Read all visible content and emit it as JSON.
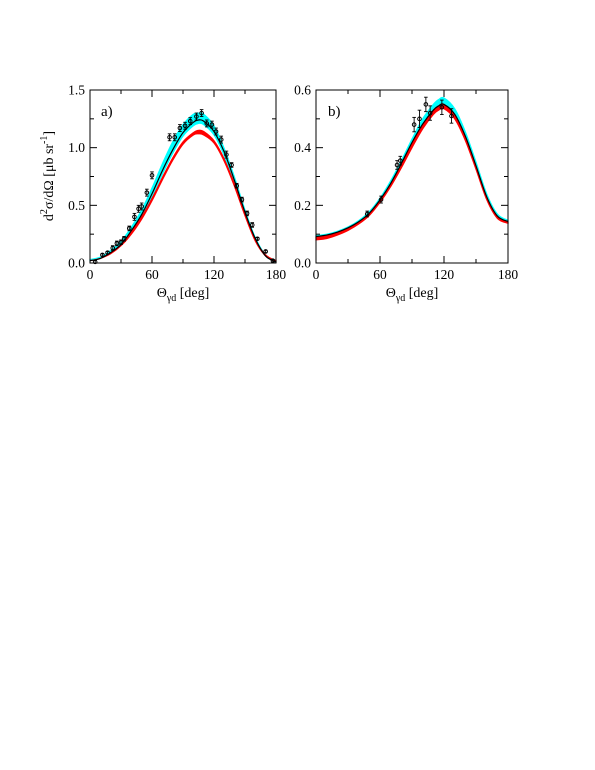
{
  "figure": {
    "ylabel": "d²σ/dΩ [μb sr⁻¹]",
    "ylabel_parts": {
      "base": "d",
      "sup1": "2",
      "mid": "σ/dΩ [μb sr",
      "sup2": "-1",
      "end": "]"
    },
    "xlabel_parts": {
      "symbol": "Θ",
      "sub": "γd",
      "rest": " [deg]"
    }
  },
  "colors": {
    "band_cyan": "#00ffff",
    "band_red": "#ff0000",
    "curve_black": "#000000",
    "data_points": "#000000"
  },
  "chart_data": [
    {
      "type": "line",
      "panel_label": "a)",
      "xlim": [
        0,
        180
      ],
      "ylim": [
        0,
        1.5
      ],
      "xticks": [
        0,
        60,
        120,
        180
      ],
      "xtick_labels": [
        "0",
        "60",
        "120",
        "180"
      ],
      "yticks": [
        0,
        0.5,
        1.0,
        1.5
      ],
      "ytick_labels": [
        "0.0",
        "0.5",
        "1.0",
        "1.5"
      ],
      "grid": false,
      "x": [
        0,
        10,
        20,
        30,
        40,
        50,
        60,
        70,
        80,
        90,
        100,
        105,
        110,
        120,
        130,
        140,
        150,
        160,
        170,
        180
      ],
      "bands": [
        {
          "color": "cyan",
          "lower": [
            0.02,
            0.04,
            0.09,
            0.16,
            0.27,
            0.41,
            0.58,
            0.77,
            0.95,
            1.1,
            1.19,
            1.21,
            1.2,
            1.11,
            0.93,
            0.69,
            0.43,
            0.2,
            0.06,
            0.01
          ],
          "upper": [
            0.03,
            0.05,
            0.11,
            0.19,
            0.31,
            0.46,
            0.65,
            0.86,
            1.05,
            1.2,
            1.29,
            1.3,
            1.29,
            1.19,
            0.99,
            0.74,
            0.46,
            0.22,
            0.07,
            0.02
          ]
        },
        {
          "color": "red",
          "lower": [
            0.02,
            0.04,
            0.08,
            0.15,
            0.25,
            0.38,
            0.54,
            0.72,
            0.89,
            1.03,
            1.11,
            1.12,
            1.11,
            1.04,
            0.88,
            0.66,
            0.41,
            0.19,
            0.06,
            0.01
          ],
          "upper": [
            0.02,
            0.04,
            0.09,
            0.16,
            0.27,
            0.4,
            0.56,
            0.74,
            0.91,
            1.05,
            1.13,
            1.15,
            1.14,
            1.06,
            0.9,
            0.68,
            0.43,
            0.2,
            0.07,
            0.02
          ]
        }
      ],
      "series": [
        {
          "color": "black",
          "values": [
            0.02,
            0.04,
            0.09,
            0.16,
            0.28,
            0.42,
            0.6,
            0.8,
            0.98,
            1.13,
            1.22,
            1.24,
            1.23,
            1.14,
            0.96,
            0.71,
            0.44,
            0.21,
            0.06,
            0.01
          ]
        }
      ],
      "points": [
        {
          "x": 5,
          "y": 0.01,
          "err": 0.01
        },
        {
          "x": 12,
          "y": 0.07,
          "err": 0.01
        },
        {
          "x": 17,
          "y": 0.09,
          "err": 0.01
        },
        {
          "x": 22,
          "y": 0.13,
          "err": 0.02
        },
        {
          "x": 26,
          "y": 0.17,
          "err": 0.02
        },
        {
          "x": 30,
          "y": 0.18,
          "err": 0.02
        },
        {
          "x": 33,
          "y": 0.21,
          "err": 0.02
        },
        {
          "x": 38,
          "y": 0.3,
          "err": 0.02
        },
        {
          "x": 43,
          "y": 0.4,
          "err": 0.03
        },
        {
          "x": 47,
          "y": 0.47,
          "err": 0.03
        },
        {
          "x": 50,
          "y": 0.49,
          "err": 0.03
        },
        {
          "x": 55,
          "y": 0.61,
          "err": 0.03
        },
        {
          "x": 60,
          "y": 0.76,
          "err": 0.03
        },
        {
          "x": 77,
          "y": 1.09,
          "err": 0.03
        },
        {
          "x": 82,
          "y": 1.09,
          "err": 0.03
        },
        {
          "x": 87,
          "y": 1.17,
          "err": 0.03
        },
        {
          "x": 92,
          "y": 1.19,
          "err": 0.03
        },
        {
          "x": 97,
          "y": 1.23,
          "err": 0.03
        },
        {
          "x": 103,
          "y": 1.27,
          "err": 0.03
        },
        {
          "x": 108,
          "y": 1.3,
          "err": 0.03
        },
        {
          "x": 113,
          "y": 1.21,
          "err": 0.03
        },
        {
          "x": 118,
          "y": 1.2,
          "err": 0.03
        },
        {
          "x": 122,
          "y": 1.14,
          "err": 0.03
        },
        {
          "x": 127,
          "y": 1.07,
          "err": 0.03
        },
        {
          "x": 132,
          "y": 0.94,
          "err": 0.03
        },
        {
          "x": 137,
          "y": 0.85,
          "err": 0.02
        },
        {
          "x": 142,
          "y": 0.67,
          "err": 0.02
        },
        {
          "x": 147,
          "y": 0.55,
          "err": 0.02
        },
        {
          "x": 152,
          "y": 0.43,
          "err": 0.02
        },
        {
          "x": 157,
          "y": 0.33,
          "err": 0.02
        },
        {
          "x": 162,
          "y": 0.21,
          "err": 0.01
        },
        {
          "x": 170,
          "y": 0.1,
          "err": 0.01
        },
        {
          "x": 177,
          "y": 0.02,
          "err": 0.01
        }
      ]
    },
    {
      "type": "line",
      "panel_label": "b)",
      "xlim": [
        0,
        180
      ],
      "ylim": [
        0,
        0.6
      ],
      "xticks": [
        0,
        60,
        120,
        180
      ],
      "xtick_labels": [
        "0",
        "60",
        "120",
        "180"
      ],
      "yticks": [
        0,
        0.2,
        0.4,
        0.6
      ],
      "ytick_labels": [
        "0.0",
        "0.2",
        "0.4",
        "0.6"
      ],
      "grid": false,
      "x": [
        0,
        10,
        20,
        30,
        40,
        50,
        60,
        70,
        80,
        90,
        100,
        110,
        115,
        120,
        130,
        140,
        150,
        160,
        170,
        180
      ],
      "bands": [
        {
          "color": "cyan",
          "lower": [
            0.09,
            0.095,
            0.105,
            0.12,
            0.14,
            0.17,
            0.215,
            0.27,
            0.34,
            0.41,
            0.47,
            0.52,
            0.535,
            0.54,
            0.505,
            0.43,
            0.33,
            0.225,
            0.16,
            0.14
          ],
          "upper": [
            0.095,
            0.1,
            0.11,
            0.125,
            0.147,
            0.178,
            0.225,
            0.285,
            0.355,
            0.43,
            0.5,
            0.55,
            0.567,
            0.572,
            0.535,
            0.455,
            0.35,
            0.24,
            0.17,
            0.148
          ]
        },
        {
          "color": "red",
          "lower": [
            0.08,
            0.085,
            0.097,
            0.113,
            0.135,
            0.165,
            0.21,
            0.265,
            0.33,
            0.4,
            0.465,
            0.515,
            0.53,
            0.535,
            0.5,
            0.425,
            0.325,
            0.22,
            0.155,
            0.138
          ],
          "upper": [
            0.09,
            0.095,
            0.105,
            0.12,
            0.141,
            0.171,
            0.217,
            0.273,
            0.34,
            0.412,
            0.478,
            0.53,
            0.545,
            0.55,
            0.515,
            0.438,
            0.335,
            0.228,
            0.162,
            0.143
          ]
        }
      ],
      "series": [
        {
          "color": "black",
          "values": [
            0.092,
            0.097,
            0.107,
            0.122,
            0.143,
            0.173,
            0.219,
            0.276,
            0.345,
            0.418,
            0.482,
            0.53,
            0.545,
            0.55,
            0.516,
            0.44,
            0.337,
            0.23,
            0.163,
            0.144
          ]
        }
      ],
      "points": [
        {
          "x": 48,
          "y": 0.17,
          "err": 0.01
        },
        {
          "x": 61,
          "y": 0.22,
          "err": 0.012
        },
        {
          "x": 76,
          "y": 0.34,
          "err": 0.015
        },
        {
          "x": 79,
          "y": 0.355,
          "err": 0.015
        },
        {
          "x": 92,
          "y": 0.48,
          "err": 0.025
        },
        {
          "x": 97,
          "y": 0.5,
          "err": 0.03
        },
        {
          "x": 103,
          "y": 0.55,
          "err": 0.025
        },
        {
          "x": 107,
          "y": 0.52,
          "err": 0.025
        },
        {
          "x": 118,
          "y": 0.54,
          "err": 0.025
        },
        {
          "x": 127,
          "y": 0.51,
          "err": 0.025
        }
      ]
    }
  ]
}
